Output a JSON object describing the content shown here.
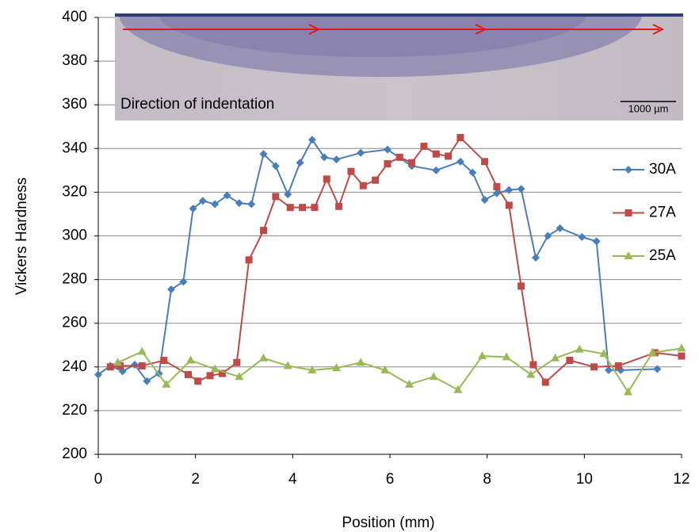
{
  "chart_data": {
    "type": "line",
    "x_label": "Position (mm)",
    "y_label": "Vickers Hardness",
    "annotations": [
      "Direction of indentation",
      "1000 µm"
    ],
    "xlim": [
      0,
      12
    ],
    "xticks": [
      0,
      2,
      4,
      6,
      8,
      10,
      12
    ],
    "ylim": [
      200,
      400
    ],
    "yticks": [
      200,
      220,
      240,
      260,
      280,
      300,
      320,
      340,
      360,
      380,
      400
    ],
    "grid": true,
    "legend": "right",
    "series": [
      {
        "name": "30A",
        "color": "#4a7ebb",
        "marker": "diamond",
        "x": [
          0,
          0.25,
          0.5,
          0.75,
          1.0,
          1.25,
          1.5,
          1.75,
          1.95,
          2.15,
          2.4,
          2.65,
          2.9,
          3.15,
          3.4,
          3.65,
          3.9,
          4.15,
          4.4,
          4.65,
          4.9,
          5.4,
          5.95,
          6.45,
          6.95,
          7.45,
          7.7,
          7.95,
          8.2,
          8.45,
          8.7,
          9.0,
          9.25,
          9.5,
          9.95,
          10.25,
          10.5,
          10.75,
          11.5
        ],
        "values": [
          236.5,
          240.5,
          238,
          241,
          233.5,
          237,
          275.5,
          279,
          312.5,
          316,
          314.5,
          318.5,
          315,
          314.5,
          337.5,
          332,
          319,
          333.5,
          344,
          336,
          335,
          338,
          339.5,
          332,
          330,
          334,
          329,
          316.5,
          319.5,
          321,
          321.5,
          290,
          300,
          303.5,
          299.5,
          297.5,
          238.5,
          238.5,
          239
        ]
      },
      {
        "name": "27A",
        "color": "#be4b48",
        "marker": "square",
        "x": [
          0.25,
          0.45,
          0.9,
          1.35,
          1.85,
          2.05,
          2.3,
          2.55,
          2.85,
          3.1,
          3.4,
          3.65,
          3.95,
          4.2,
          4.45,
          4.7,
          4.95,
          5.2,
          5.45,
          5.7,
          5.95,
          6.2,
          6.45,
          6.7,
          6.95,
          7.2,
          7.45,
          7.95,
          8.2,
          8.45,
          8.7,
          8.95,
          9.2,
          9.7,
          10.2,
          10.7,
          11.45,
          12
        ],
        "values": [
          240,
          240.5,
          240.5,
          243,
          236.5,
          233.5,
          236,
          237,
          242,
          289,
          302.5,
          318,
          313,
          313,
          313,
          326,
          313.5,
          329.5,
          323,
          325.5,
          333,
          336,
          333.5,
          341,
          337.5,
          336.5,
          345,
          334,
          322.5,
          314,
          277,
          241,
          233,
          243,
          240,
          240.5,
          246.5,
          245
        ]
      },
      {
        "name": "25A",
        "color": "#98b954",
        "marker": "triangle",
        "x": [
          0.4,
          0.9,
          1.4,
          1.9,
          2.4,
          2.9,
          3.4,
          3.9,
          4.4,
          4.9,
          5.4,
          5.9,
          6.4,
          6.9,
          7.4,
          7.9,
          8.4,
          8.9,
          9.4,
          9.9,
          10.4,
          10.9,
          11.4,
          12
        ],
        "values": [
          242,
          247,
          232,
          243,
          239,
          235.5,
          244,
          240.5,
          238.5,
          239.5,
          242,
          238.5,
          232,
          235.5,
          229.5,
          245,
          244.5,
          236.5,
          244,
          248,
          246,
          228.5,
          246.5,
          248.5
        ]
      }
    ]
  }
}
